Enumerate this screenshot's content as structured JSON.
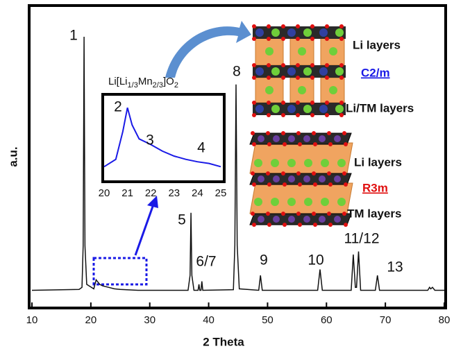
{
  "chart_data": [
    {
      "type": "line",
      "x_label": "2 Theta",
      "y_label": "a.u.",
      "x": [
        10,
        18,
        18.5,
        18.7,
        18.85,
        19.0,
        19.3,
        20.5,
        20.9,
        21.1,
        21.5,
        22,
        23,
        24,
        25,
        28,
        36.5,
        36.85,
        37.0,
        37.15,
        37.5,
        38.2,
        38.35,
        38.5,
        38.7,
        38.85,
        39.0,
        44.2,
        44.45,
        44.65,
        44.85,
        45.2,
        48.5,
        48.8,
        49.1,
        58.5,
        58.9,
        59.3,
        64.2,
        64.55,
        64.9,
        65.1,
        65.45,
        65.8,
        68.3,
        68.65,
        69.0,
        77.2,
        77.5,
        77.7,
        78,
        78.4,
        80
      ],
      "values": [
        5,
        5.3,
        6,
        20,
        90,
        20,
        7,
        5.5,
        8.5,
        8,
        7,
        6.5,
        6,
        5.5,
        5.3,
        5,
        5,
        10,
        31,
        10,
        5,
        5,
        7,
        5,
        5,
        8,
        5,
        5.2,
        20,
        74,
        20,
        5.5,
        5,
        10,
        5,
        5,
        12,
        5,
        5,
        17,
        6,
        6,
        18,
        5,
        5,
        10,
        5,
        5,
        6,
        5.5,
        6,
        5,
        5
      ],
      "color": "#111111",
      "xlim": [
        10,
        80
      ],
      "xticks": [
        10,
        20,
        30,
        40,
        50,
        60,
        70,
        80
      ],
      "ylim": [
        0,
        100
      ],
      "annotations": [
        "1",
        "5",
        "6/7",
        "8",
        "9",
        "10",
        "11/12",
        "13"
      ]
    },
    {
      "type": "line",
      "title_parts": [
        "Li[Li",
        "1/3",
        "Mn",
        "2/3",
        "]O",
        "2"
      ],
      "x": [
        20,
        20.5,
        20.8,
        21.0,
        21.2,
        21.5,
        22,
        22.5,
        23,
        23.5,
        24,
        24.5,
        25
      ],
      "values": [
        15,
        24,
        58,
        87,
        66,
        49,
        42,
        34,
        28,
        24,
        21,
        19,
        15
      ],
      "color": "#1a1ae6",
      "xlim": [
        20,
        25
      ],
      "xticks": [
        20,
        21,
        22,
        23,
        24,
        25
      ],
      "ylim": [
        0,
        100
      ],
      "annotations": [
        "2",
        "3",
        "4"
      ]
    }
  ],
  "structures": [
    {
      "name": "C2/m",
      "layers": [
        "Li layers",
        "Li/TM layers"
      ]
    },
    {
      "name": "R3m",
      "layers": [
        "Li layers",
        "TM layers"
      ]
    }
  ]
}
